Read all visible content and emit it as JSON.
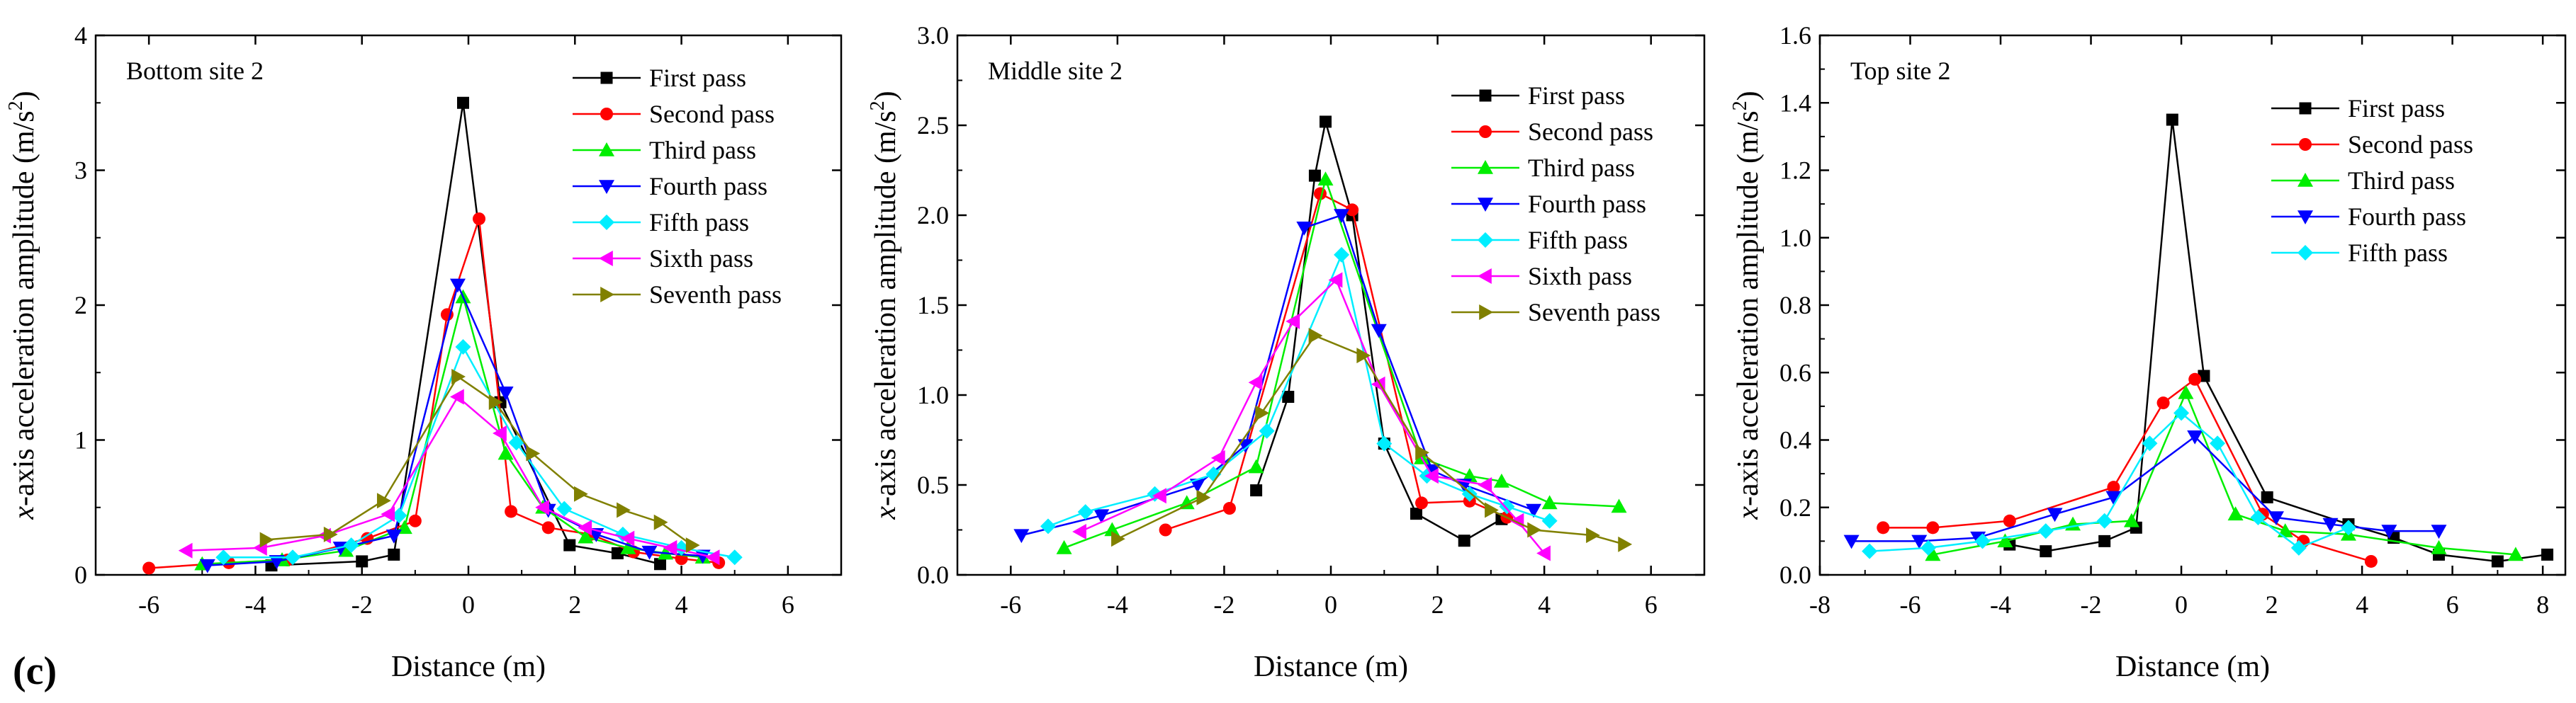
{
  "figure_label": "(c)",
  "chart_data": [
    {
      "type": "line",
      "panel": "Bottom site 2",
      "xlabel": "Distance (m)",
      "ylabel": "x-axis acceleration amplitude (m/s2)",
      "ylabel_parts": {
        "italic": "x",
        "text": "-axis acceleration amplitude (m/s",
        "sup": "2",
        "end": ")"
      },
      "xlim": [
        -7,
        7
      ],
      "ylim": [
        0,
        4
      ],
      "xticks": [
        -6,
        -4,
        -2,
        0,
        2,
        4,
        6
      ],
      "yticks": [
        0,
        1,
        2,
        3,
        4
      ],
      "ytick_labels": [
        "0",
        "1",
        "2",
        "3",
        "4"
      ],
      "legend_position": "top-right",
      "series": [
        {
          "name": "First pass",
          "color": "#000000",
          "marker": "square",
          "x": [
            -3.7,
            -2.0,
            -1.4,
            -0.1,
            0.6,
            1.9,
            2.8,
            3.6
          ],
          "y": [
            0.07,
            0.1,
            0.15,
            3.5,
            1.28,
            0.22,
            0.16,
            0.08
          ]
        },
        {
          "name": "Second pass",
          "color": "#ff0000",
          "marker": "circle",
          "x": [
            -6.0,
            -4.5,
            -3.4,
            -1.9,
            -1.0,
            -0.4,
            0.2,
            0.8,
            1.5,
            2.3,
            3.1,
            4.0,
            4.7
          ],
          "y": [
            0.05,
            0.09,
            0.11,
            0.27,
            0.4,
            1.93,
            2.64,
            0.47,
            0.35,
            0.3,
            0.17,
            0.12,
            0.09
          ]
        },
        {
          "name": "Third pass",
          "color": "#00ee00",
          "marker": "triangle-up",
          "x": [
            -5.0,
            -3.5,
            -2.3,
            -1.2,
            -0.1,
            0.7,
            1.4,
            2.2,
            3.0,
            3.7,
            4.4
          ],
          "y": [
            0.08,
            0.11,
            0.18,
            0.35,
            2.06,
            0.9,
            0.5,
            0.28,
            0.2,
            0.16,
            0.13
          ]
        },
        {
          "name": "Fourth pass",
          "color": "#0000ff",
          "marker": "triangle-down",
          "x": [
            -4.9,
            -3.6,
            -2.4,
            -1.4,
            -0.2,
            0.7,
            1.5,
            2.4,
            3.4,
            4.4
          ],
          "y": [
            0.07,
            0.1,
            0.2,
            0.29,
            2.15,
            1.35,
            0.48,
            0.3,
            0.17,
            0.14
          ]
        },
        {
          "name": "Fifth pass",
          "color": "#00eeff",
          "marker": "diamond",
          "x": [
            -4.6,
            -3.3,
            -2.2,
            -1.3,
            -0.1,
            0.9,
            1.8,
            2.9,
            4.0,
            5.0
          ],
          "y": [
            0.13,
            0.13,
            0.22,
            0.44,
            1.69,
            0.98,
            0.49,
            0.3,
            0.2,
            0.13
          ]
        },
        {
          "name": "Sixth pass",
          "color": "#ff00ff",
          "marker": "triangle-left",
          "x": [
            -5.3,
            -3.9,
            -2.7,
            -1.5,
            -0.2,
            0.6,
            1.4,
            2.2,
            3.0,
            3.8,
            4.6
          ],
          "y": [
            0.18,
            0.2,
            0.29,
            0.45,
            1.32,
            1.05,
            0.5,
            0.35,
            0.27,
            0.2,
            0.13
          ]
        },
        {
          "name": "Seventh pass",
          "color": "#808000",
          "marker": "triangle-right",
          "x": [
            -3.8,
            -2.6,
            -1.6,
            -0.2,
            0.5,
            1.2,
            2.1,
            2.9,
            3.6,
            4.2
          ],
          "y": [
            0.26,
            0.3,
            0.55,
            1.47,
            1.28,
            0.9,
            0.6,
            0.48,
            0.39,
            0.22
          ]
        }
      ]
    },
    {
      "type": "line",
      "panel": "Middle site 2",
      "xlabel": "Distance (m)",
      "ylabel": "x-axis acceleration amplitude (m/s2)",
      "ylabel_parts": {
        "italic": "x",
        "text": "-axis acceleration amplitude (m/s",
        "sup": "2",
        "end": ")"
      },
      "xlim": [
        -7,
        7
      ],
      "ylim": [
        0,
        3
      ],
      "xticks": [
        -6,
        -4,
        -2,
        0,
        2,
        4,
        6
      ],
      "yticks": [
        0,
        0.5,
        1,
        1.5,
        2,
        2.5,
        3
      ],
      "ytick_labels": [
        "0.0",
        "0.5",
        "1.0",
        "1.5",
        "2.0",
        "2.5",
        "3.0"
      ],
      "legend_position": "top-right",
      "series": [
        {
          "name": "First pass",
          "color": "#000000",
          "marker": "square",
          "x": [
            -1.4,
            -0.8,
            -0.3,
            -0.1,
            0.4,
            1.0,
            1.6,
            2.5,
            3.2
          ],
          "y": [
            0.47,
            0.99,
            2.22,
            2.52,
            2.0,
            0.73,
            0.34,
            0.19,
            0.31
          ]
        },
        {
          "name": "Second pass",
          "color": "#ff0000",
          "marker": "circle",
          "x": [
            -3.1,
            -1.9,
            -0.2,
            0.4,
            1.7,
            2.6,
            3.3
          ],
          "y": [
            0.25,
            0.37,
            2.12,
            2.03,
            0.4,
            0.41,
            0.32
          ]
        },
        {
          "name": "Third pass",
          "color": "#00ee00",
          "marker": "triangle-up",
          "x": [
            -5.0,
            -4.1,
            -2.7,
            -1.4,
            -0.1,
            1.7,
            2.6,
            3.2,
            4.1,
            5.4
          ],
          "y": [
            0.15,
            0.25,
            0.4,
            0.6,
            2.2,
            0.65,
            0.55,
            0.52,
            0.4,
            0.38
          ]
        },
        {
          "name": "Fourth pass",
          "color": "#0000ff",
          "marker": "triangle-down",
          "x": [
            -5.8,
            -4.3,
            -2.5,
            -1.6,
            -0.5,
            0.2,
            0.9,
            1.9,
            2.5,
            3.8
          ],
          "y": [
            0.22,
            0.33,
            0.5,
            0.72,
            1.93,
            2.0,
            1.36,
            0.58,
            0.5,
            0.36
          ]
        },
        {
          "name": "Fifth pass",
          "color": "#00eeff",
          "marker": "diamond",
          "x": [
            -5.3,
            -4.6,
            -3.3,
            -2.2,
            -1.2,
            0.2,
            1.0,
            1.8,
            2.6,
            3.3,
            4.1
          ],
          "y": [
            0.27,
            0.35,
            0.45,
            0.56,
            0.8,
            1.78,
            0.73,
            0.55,
            0.45,
            0.38,
            0.3
          ]
        },
        {
          "name": "Sixth pass",
          "color": "#ff00ff",
          "marker": "triangle-left",
          "x": [
            -4.7,
            -3.2,
            -2.1,
            -1.4,
            -0.7,
            0.1,
            0.9,
            1.9,
            2.9,
            3.5,
            4.0
          ],
          "y": [
            0.24,
            0.44,
            0.65,
            1.07,
            1.41,
            1.64,
            1.06,
            0.55,
            0.5,
            0.3,
            0.12
          ]
        },
        {
          "name": "Seventh pass",
          "color": "#808000",
          "marker": "triangle-right",
          "x": [
            -4.0,
            -2.4,
            -1.3,
            -0.3,
            0.6,
            1.7,
            3.0,
            3.8,
            4.9,
            5.5
          ],
          "y": [
            0.2,
            0.43,
            0.9,
            1.33,
            1.22,
            0.68,
            0.36,
            0.25,
            0.22,
            0.17
          ]
        }
      ]
    },
    {
      "type": "line",
      "panel": "Top site 2",
      "xlabel": "Distance (m)",
      "ylabel": "x-axis acceleration amplitude (m/s2)",
      "ylabel_parts": {
        "italic": "x",
        "text": "-axis acceleration amplitude (m/s",
        "sup": "2",
        "end": ")"
      },
      "xlim": [
        -8,
        8.5
      ],
      "ylim": [
        0,
        1.6
      ],
      "xticks": [
        -8,
        -6,
        -4,
        -2,
        0,
        2,
        4,
        6,
        8
      ],
      "yticks": [
        0,
        0.2,
        0.4,
        0.6,
        0.8,
        1.0,
        1.2,
        1.4,
        1.6
      ],
      "ytick_labels": [
        "0.0",
        "0.2",
        "0.4",
        "0.6",
        "0.8",
        "1.0",
        "1.2",
        "1.4",
        "1.6"
      ],
      "legend_position": "top-right",
      "series": [
        {
          "name": "First pass",
          "color": "#000000",
          "marker": "square",
          "x": [
            -3.8,
            -3.0,
            -1.7,
            -1.0,
            -0.2,
            0.5,
            1.9,
            3.7,
            4.7,
            5.7,
            7.0,
            8.1
          ],
          "y": [
            0.09,
            0.07,
            0.1,
            0.14,
            1.35,
            0.59,
            0.23,
            0.15,
            0.11,
            0.06,
            0.04,
            0.06
          ]
        },
        {
          "name": "Second pass",
          "color": "#ff0000",
          "marker": "circle",
          "x": [
            -6.6,
            -5.5,
            -3.8,
            -1.5,
            -0.4,
            0.3,
            1.8,
            2.7,
            4.2
          ],
          "y": [
            0.14,
            0.14,
            0.16,
            0.26,
            0.51,
            0.58,
            0.18,
            0.1,
            0.04
          ]
        },
        {
          "name": "Third pass",
          "color": "#00ee00",
          "marker": "triangle-up",
          "x": [
            -5.5,
            -3.9,
            -2.4,
            -1.1,
            0.1,
            1.2,
            2.3,
            3.7,
            5.7,
            7.4
          ],
          "y": [
            0.06,
            0.1,
            0.15,
            0.16,
            0.54,
            0.18,
            0.13,
            0.12,
            0.08,
            0.06
          ]
        },
        {
          "name": "Fourth pass",
          "color": "#0000ff",
          "marker": "triangle-down",
          "x": [
            -7.3,
            -5.8,
            -4.5,
            -2.8,
            -1.5,
            0.3,
            2.1,
            3.3,
            4.6,
            5.7
          ],
          "y": [
            0.1,
            0.1,
            0.11,
            0.18,
            0.23,
            0.41,
            0.17,
            0.15,
            0.13,
            0.13
          ]
        },
        {
          "name": "Fifth pass",
          "color": "#00eeff",
          "marker": "diamond",
          "x": [
            -6.9,
            -5.6,
            -4.4,
            -3.0,
            -1.7,
            -0.7,
            0.0,
            0.8,
            1.7,
            2.6,
            3.7
          ],
          "y": [
            0.07,
            0.08,
            0.1,
            0.13,
            0.16,
            0.39,
            0.48,
            0.39,
            0.17,
            0.08,
            0.14
          ]
        }
      ]
    }
  ]
}
